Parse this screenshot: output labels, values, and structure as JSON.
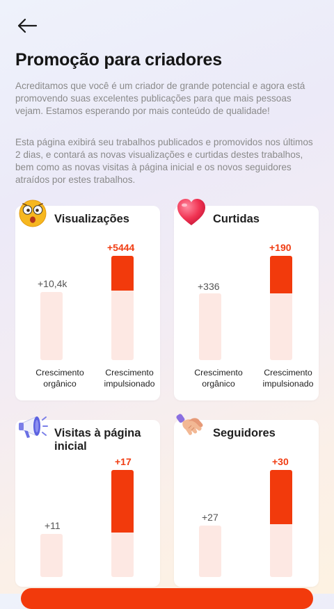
{
  "header": {
    "title": "Promoção para criadores",
    "intro": "Acreditamos que você é um criador de grande potencial e agora está promovendo suas excelentes publicações para que mais pessoas vejam. Estamos esperando por mais conteúdo de qualidade!",
    "description": "Esta página exibirá seu trabalhos publicados e promovidos nos últimos 2 dias, e contará as novas visualizações e curtidas destes trabalhos, bem como as novas visitas à página inicial e os novos seguidores atraídos por estes trabalhos."
  },
  "labels": {
    "organic": "Crescimento orgânico",
    "boosted": "Crescimento impulsionado"
  },
  "cards": [
    {
      "title": "Visualizações",
      "icon": "surprised-face-icon",
      "organic_value": "+10,4k",
      "boosted_value": "+5444"
    },
    {
      "title": "Curtidas",
      "icon": "heart-icon",
      "organic_value": "+336",
      "boosted_value": "+190"
    },
    {
      "title": "Visitas à página inicial",
      "icon": "megaphone-icon",
      "organic_value": "+11",
      "boosted_value": "+17"
    },
    {
      "title": "Seguidores",
      "icon": "handshake-icon",
      "organic_value": "+27",
      "boosted_value": "+30"
    }
  ],
  "colors": {
    "accent": "#f23a0c",
    "bar_light": "#fde8e3"
  }
}
